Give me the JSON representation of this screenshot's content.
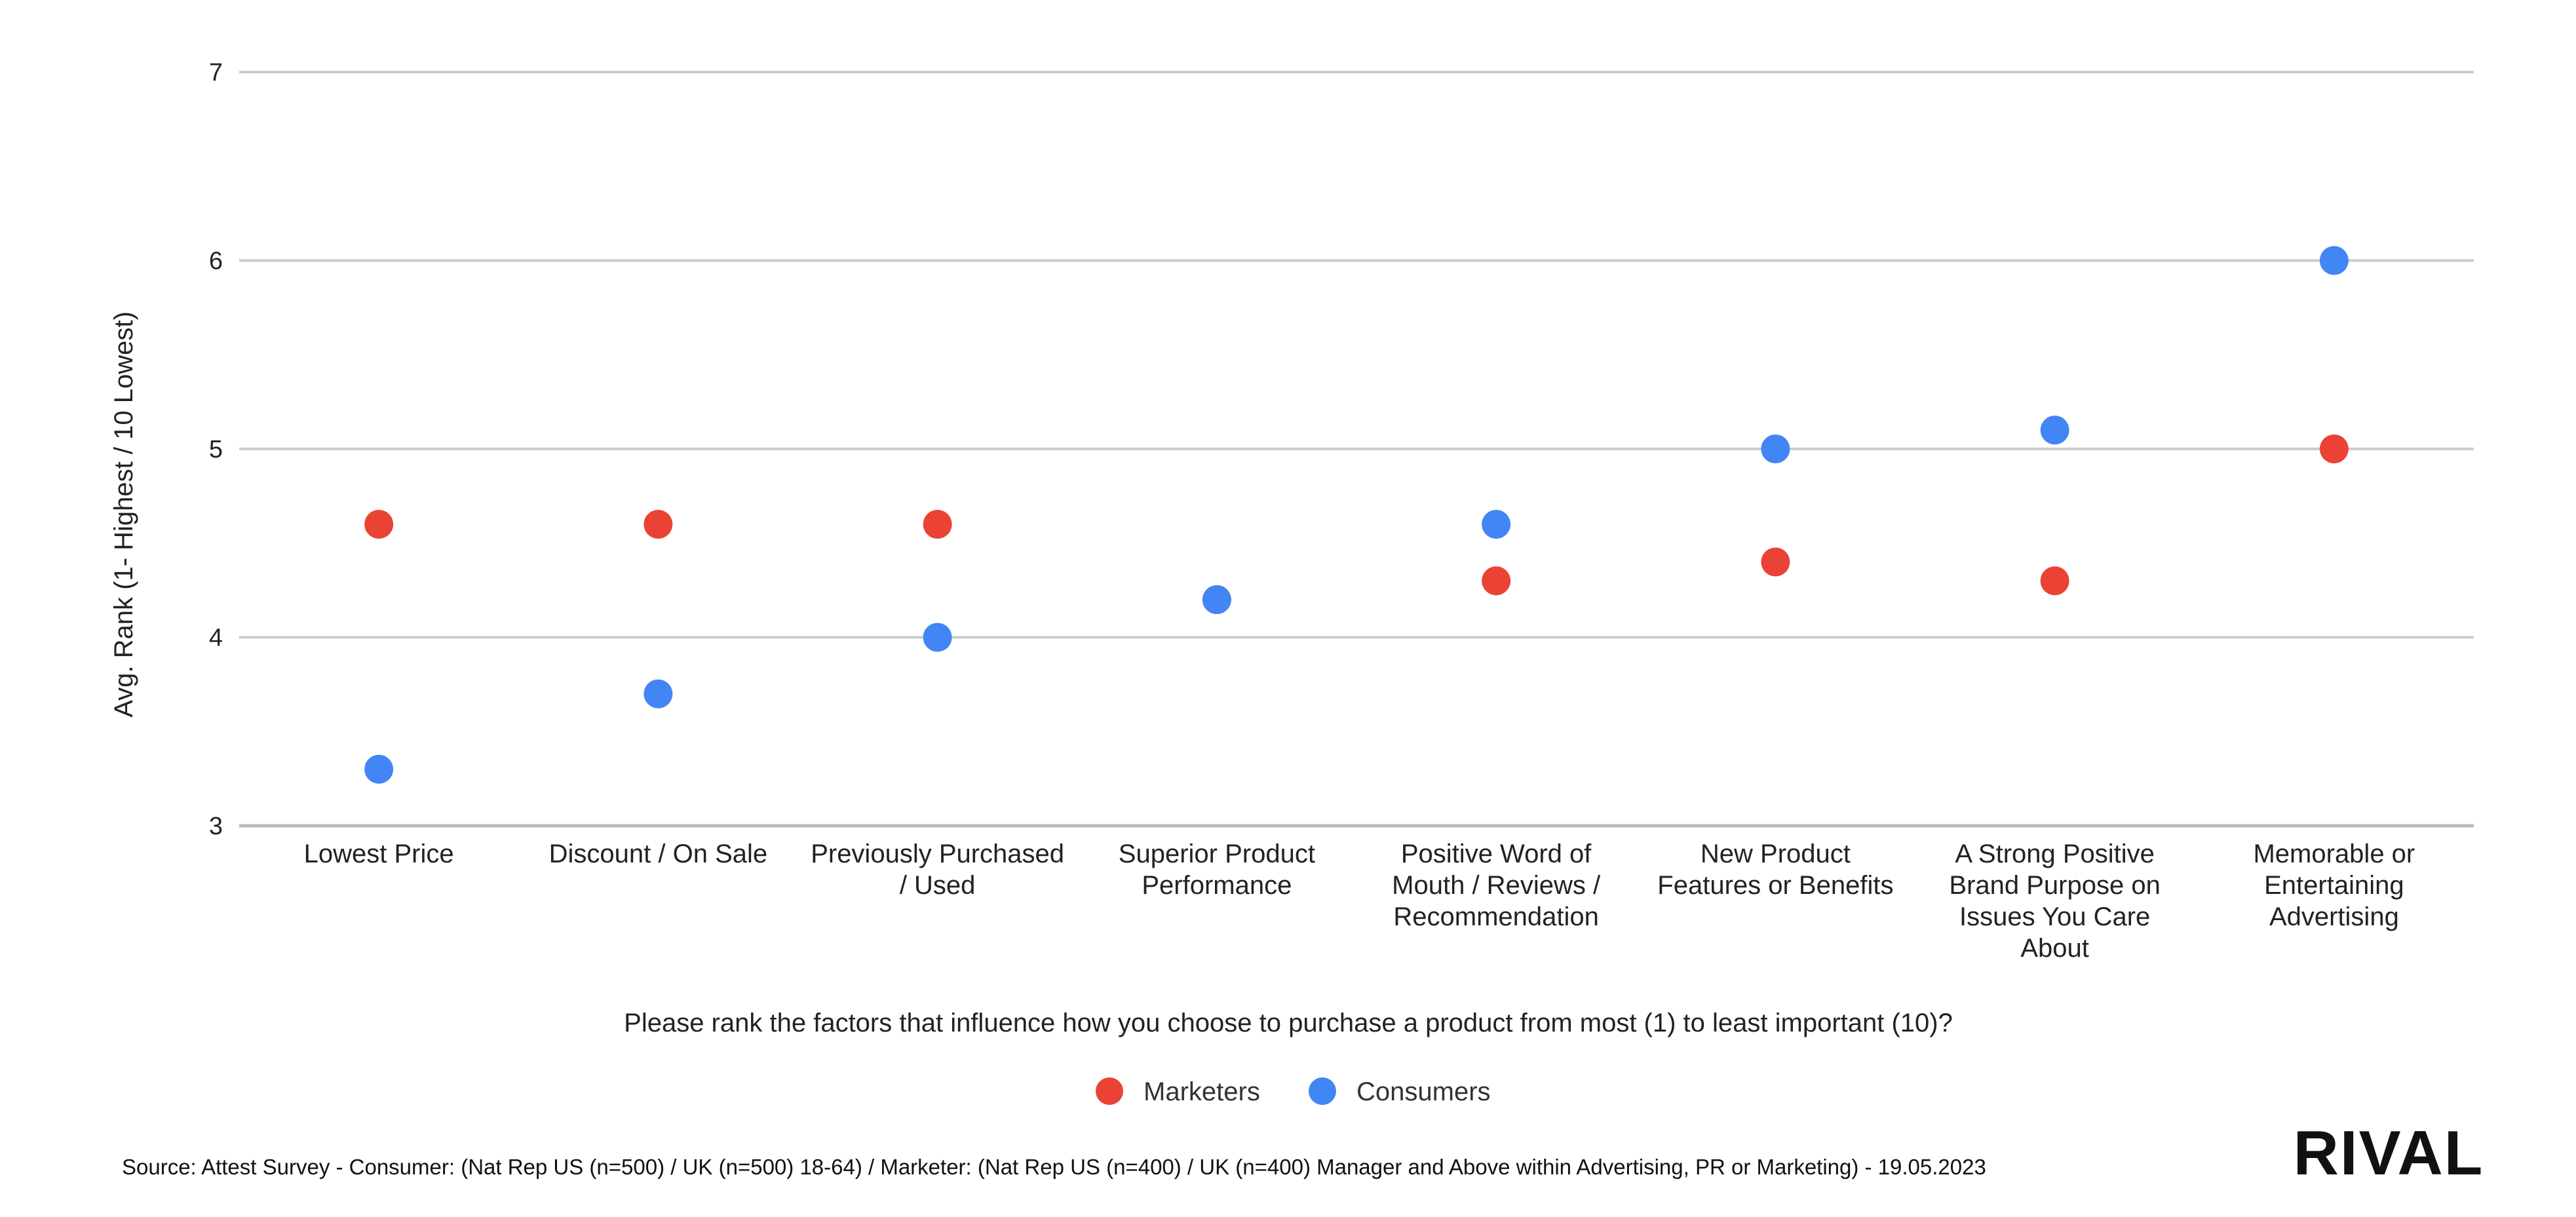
{
  "chart_data": {
    "type": "scatter",
    "title": "",
    "xlabel": "Please rank the factors that influence how you choose to purchase a product from most (1) to least important (10)?",
    "ylabel": "Avg. Rank (1- Highest / 10 Lowest)",
    "ylim": [
      3,
      7
    ],
    "yticks": [
      3,
      4,
      5,
      6,
      7
    ],
    "grid": true,
    "legend_position": "bottom-center",
    "categories": [
      [
        "Lowest Price"
      ],
      [
        "Discount  / On Sale"
      ],
      [
        "Previously Purchased",
        "/ Used"
      ],
      [
        "Superior Product",
        "Performance"
      ],
      [
        "Positive Word of",
        "Mouth / Reviews /",
        "Recommendation"
      ],
      [
        "New Product",
        "Features or Benefits"
      ],
      [
        "A Strong Positive",
        "Brand Purpose on",
        "Issues You Care",
        "About"
      ],
      [
        "Memorable or",
        "Entertaining",
        "Advertising"
      ]
    ],
    "series": [
      {
        "name": "Marketers",
        "color": "#ea4335",
        "values": [
          4.6,
          4.6,
          4.6,
          4.2,
          4.3,
          4.4,
          4.3,
          5.0
        ]
      },
      {
        "name": "Consumers",
        "color": "#4285f4",
        "values": [
          3.3,
          3.7,
          4.0,
          4.2,
          4.6,
          5.0,
          5.1,
          6.0
        ]
      }
    ]
  },
  "footer": {
    "source": "Source: Attest Survey - Consumer:  (Nat Rep US (n=500) / UK (n=500) 18-64) / Marketer:  (Nat Rep US (n=400) / UK (n=400) Manager and Above within Advertising, PR or Marketing) - 19.05.2023"
  },
  "logo": {
    "text": "RIVAL",
    "color": "#111111",
    "accent": "#e91e8c"
  }
}
